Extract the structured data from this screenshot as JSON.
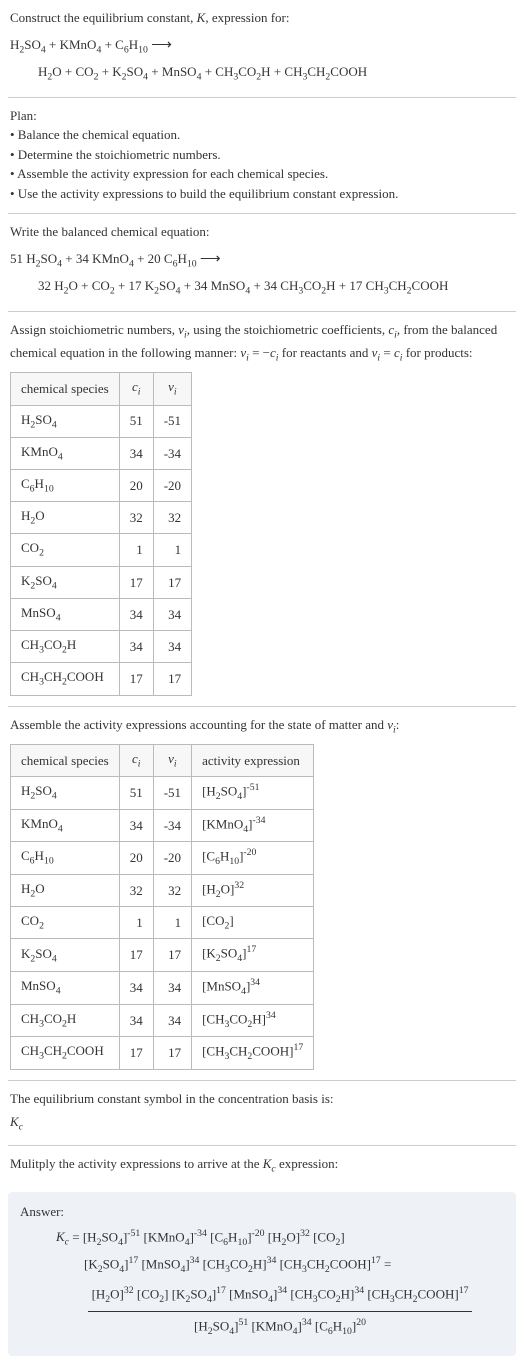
{
  "intro": {
    "construct": "Construct the equilibrium constant, ",
    "K": "K",
    "construct2": ", expression for:"
  },
  "plan": {
    "heading": "Plan:",
    "items": [
      "• Balance the chemical equation.",
      "• Determine the stoichiometric numbers.",
      "• Assemble the activity expression for each chemical species.",
      "• Use the activity expressions to build the equilibrium constant expression."
    ]
  },
  "balanced_heading": "Write the balanced chemical equation:",
  "assign_text1": "Assign stoichiometric numbers, ",
  "assign_text2": ", using the stoichiometric coefficients, ",
  "assign_text3": ", from the balanced chemical equation in the following manner: ",
  "assign_text4": " for reactants and ",
  "assign_text5": " for products:",
  "table1": {
    "headers": [
      "chemical species",
      "cᵢ",
      "νᵢ"
    ],
    "rows": [
      {
        "sp": "H₂SO₄",
        "c": "51",
        "v": "-51"
      },
      {
        "sp": "KMnO₄",
        "c": "34",
        "v": "-34"
      },
      {
        "sp": "C₆H₁₀",
        "c": "20",
        "v": "-20"
      },
      {
        "sp": "H₂O",
        "c": "32",
        "v": "32"
      },
      {
        "sp": "CO₂",
        "c": "1",
        "v": "1"
      },
      {
        "sp": "K₂SO₄",
        "c": "17",
        "v": "17"
      },
      {
        "sp": "MnSO₄",
        "c": "34",
        "v": "34"
      },
      {
        "sp": "CH₃CO₂H",
        "c": "34",
        "v": "34"
      },
      {
        "sp": "CH₃CH₂COOH",
        "c": "17",
        "v": "17"
      }
    ]
  },
  "assemble_text": "Assemble the activity expressions accounting for the state of matter and ",
  "table2": {
    "headers": [
      "chemical species",
      "cᵢ",
      "νᵢ",
      "activity expression"
    ],
    "rows": [
      {
        "sp": "H₂SO₄",
        "c": "51",
        "v": "-51",
        "ae_base": "[H₂SO₄]",
        "ae_exp": "-51"
      },
      {
        "sp": "KMnO₄",
        "c": "34",
        "v": "-34",
        "ae_base": "[KMnO₄]",
        "ae_exp": "-34"
      },
      {
        "sp": "C₆H₁₀",
        "c": "20",
        "v": "-20",
        "ae_base": "[C₆H₁₀]",
        "ae_exp": "-20"
      },
      {
        "sp": "H₂O",
        "c": "32",
        "v": "32",
        "ae_base": "[H₂O]",
        "ae_exp": "32"
      },
      {
        "sp": "CO₂",
        "c": "1",
        "v": "1",
        "ae_base": "[CO₂]",
        "ae_exp": ""
      },
      {
        "sp": "K₂SO₄",
        "c": "17",
        "v": "17",
        "ae_base": "[K₂SO₄]",
        "ae_exp": "17"
      },
      {
        "sp": "MnSO₄",
        "c": "34",
        "v": "34",
        "ae_base": "[MnSO₄]",
        "ae_exp": "34"
      },
      {
        "sp": "CH₃CO₂H",
        "c": "34",
        "v": "34",
        "ae_base": "[CH₃CO₂H]",
        "ae_exp": "34"
      },
      {
        "sp": "CH₃CH₂COOH",
        "c": "17",
        "v": "17",
        "ae_base": "[CH₃CH₂COOH]",
        "ae_exp": "17"
      }
    ]
  },
  "eqconst_text": "The equilibrium constant symbol in the concentration basis is:",
  "Kc": "K",
  "Kc_sub": "c",
  "multiply_text": "Mulitply the activity expressions to arrive at the ",
  "multiply_text2": " expression:",
  "answer_label": "Answer:",
  "colors": {
    "answer_bg": "#eef2f6",
    "border": "#bbb",
    "text": "#333"
  }
}
